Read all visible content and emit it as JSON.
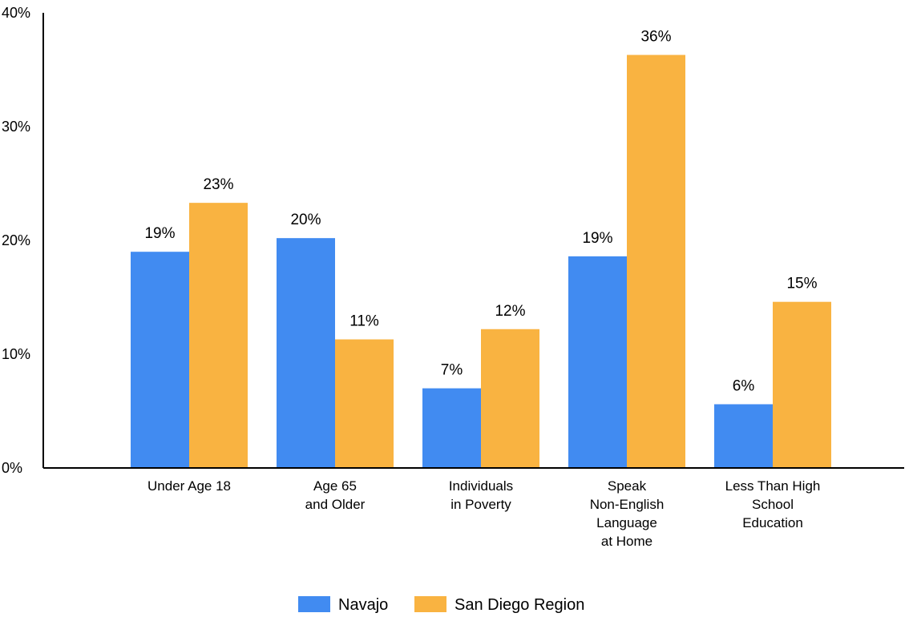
{
  "chart_data": {
    "type": "bar",
    "categories": [
      [
        "Under Age 18"
      ],
      [
        "Age 65",
        "and Older"
      ],
      [
        "Individuals",
        "in Poverty"
      ],
      [
        "Speak",
        "Non-English",
        "Language",
        "at Home"
      ],
      [
        "Less Than High",
        "School",
        "Education"
      ]
    ],
    "series": [
      {
        "name": "Navajo",
        "color": "#418bf1",
        "values": [
          19,
          20.2,
          7,
          18.6,
          5.6
        ],
        "labels": [
          "19%",
          "20%",
          "7%",
          "19%",
          "6%"
        ]
      },
      {
        "name": "San Diego Region",
        "color": "#f9b341",
        "values": [
          23.3,
          11.3,
          12.2,
          36.3,
          14.6
        ],
        "labels": [
          "23%",
          "11%",
          "12%",
          "36%",
          "15%"
        ]
      }
    ],
    "ylim": [
      0,
      40
    ],
    "yticks": [
      {
        "value": 0,
        "label": "0%"
      },
      {
        "value": 10,
        "label": "10%"
      },
      {
        "value": 20,
        "label": "20%"
      },
      {
        "value": 30,
        "label": "30%"
      },
      {
        "value": 40,
        "label": "40%"
      }
    ],
    "grid": false,
    "legend_position": "bottom-center",
    "title": "",
    "xlabel": "",
    "ylabel": ""
  }
}
